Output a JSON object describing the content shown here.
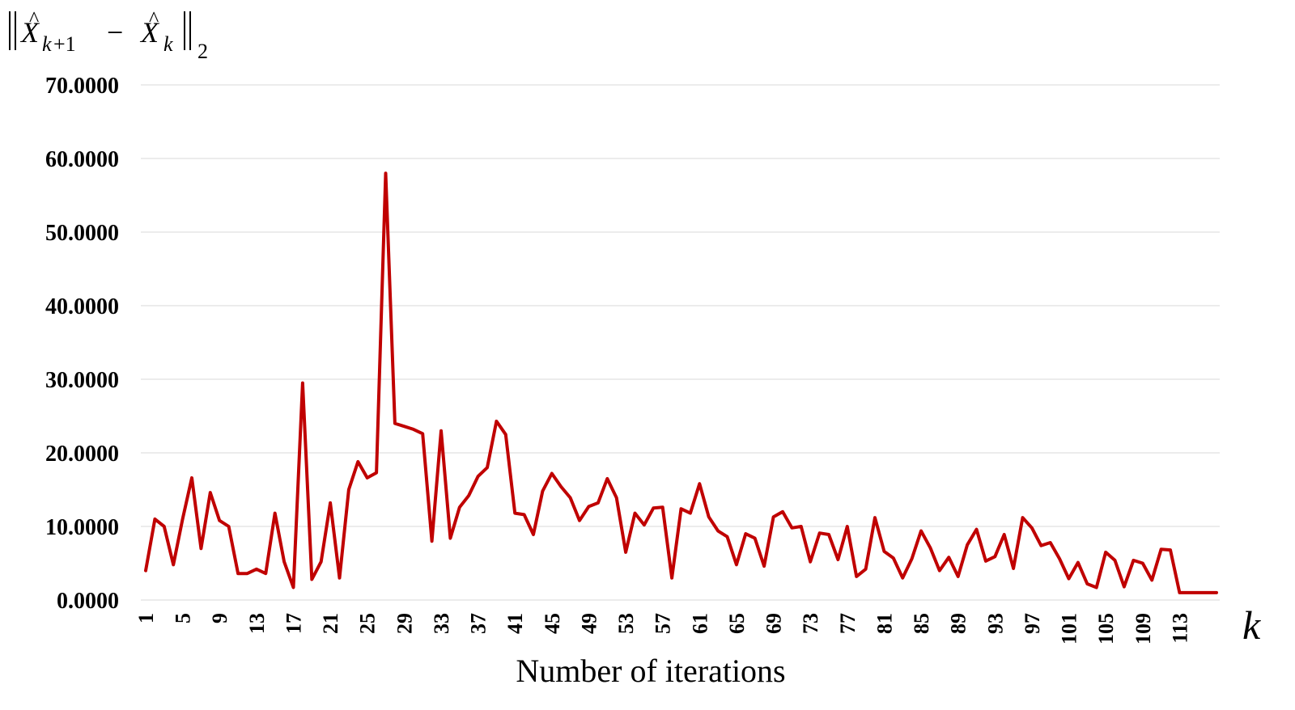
{
  "chart_data": {
    "type": "line",
    "ylabel": "‖X̂k+1 − X̂k‖2",
    "xlabel": "Number of iterations",
    "x_variable": "k",
    "ylim": [
      0,
      70
    ],
    "y_ticks": [
      "0.0000",
      "10.0000",
      "20.0000",
      "30.0000",
      "40.0000",
      "50.0000",
      "60.0000",
      "70.0000"
    ],
    "x_ticks": [
      "1",
      "5",
      "9",
      "13",
      "17",
      "21",
      "25",
      "29",
      "33",
      "37",
      "41",
      "45",
      "49",
      "53",
      "57",
      "61",
      "65",
      "69",
      "73",
      "77",
      "81",
      "85",
      "89",
      "93",
      "97",
      "101",
      "105",
      "109",
      "113"
    ],
    "grid": true,
    "series": [
      {
        "color": "#c00000",
        "x_start": 1,
        "values": [
          4.0,
          11.0,
          10.0,
          4.8,
          11.0,
          16.6,
          7.0,
          14.6,
          10.8,
          10.0,
          3.6,
          3.6,
          4.2,
          3.6,
          11.8,
          5.2,
          1.7,
          29.5,
          2.8,
          5.2,
          13.2,
          3.0,
          15.0,
          18.8,
          16.6,
          17.3,
          58.0,
          24.0,
          23.6,
          23.2,
          22.6,
          8.0,
          23.0,
          8.4,
          12.6,
          14.2,
          16.8,
          18.0,
          24.3,
          22.5,
          11.8,
          11.6,
          8.9,
          14.8,
          17.2,
          15.4,
          13.9,
          10.8,
          12.7,
          13.2,
          16.5,
          13.9,
          6.5,
          11.8,
          10.2,
          12.5,
          12.6,
          3.0,
          12.4,
          11.8,
          15.8,
          11.3,
          9.4,
          8.6,
          4.8,
          9.0,
          8.4,
          4.6,
          11.3,
          12.0,
          9.8,
          10.0,
          5.2,
          9.1,
          8.9,
          5.5,
          10.0,
          3.2,
          4.2,
          11.2,
          6.6,
          5.7,
          3.0,
          5.6,
          9.4,
          7.1,
          4.0,
          5.8,
          3.2,
          7.5,
          9.6,
          5.3,
          5.9,
          8.9,
          4.3,
          11.2,
          9.8,
          7.4,
          7.8,
          5.6,
          2.9,
          5.1,
          2.2,
          1.7,
          6.5,
          5.4,
          1.8,
          5.4,
          5.0,
          2.7,
          6.9,
          6.8,
          1.0,
          1.0,
          1.0,
          1.0,
          1.0
        ]
      }
    ]
  }
}
